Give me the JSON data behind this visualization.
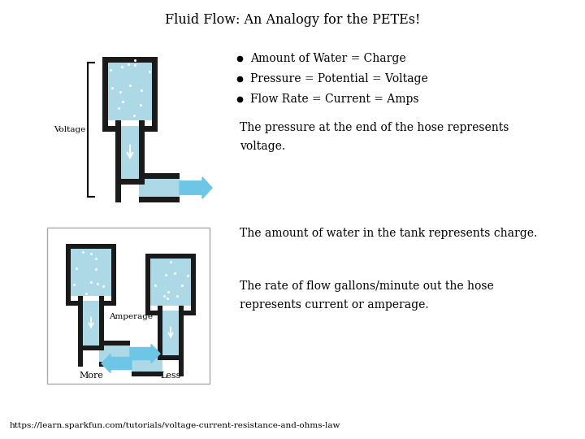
{
  "title": "Fluid Flow: An Analogy for the PETEs!",
  "bullet1": "Amount of Water = Charge",
  "bullet2": "Pressure = Potential = Voltage",
  "bullet3": "Flow Rate = Current = Amps",
  "text1": "The pressure at the end of the hose represents\nvoltage.",
  "text2": "The amount of water in the tank represents charge.",
  "text3": "The rate of flow gallons/minute out the hose\nrepresents current or amperage.",
  "footer": "https://learn.sparkfun.com/tutorials/voltage-current-resistance-and-ohms-law",
  "bg_color": "#ffffff",
  "text_color": "#000000",
  "water_color": "#add8e6",
  "tank_dark": "#1a1a1a",
  "arrow_color": "#6ec6e6",
  "title_fontsize": 11.5,
  "body_fontsize": 10,
  "footer_fontsize": 7.5,
  "voltage_label": "Voltage",
  "amperage_label": "Amperage",
  "more_label": "More",
  "less_label": "Less"
}
